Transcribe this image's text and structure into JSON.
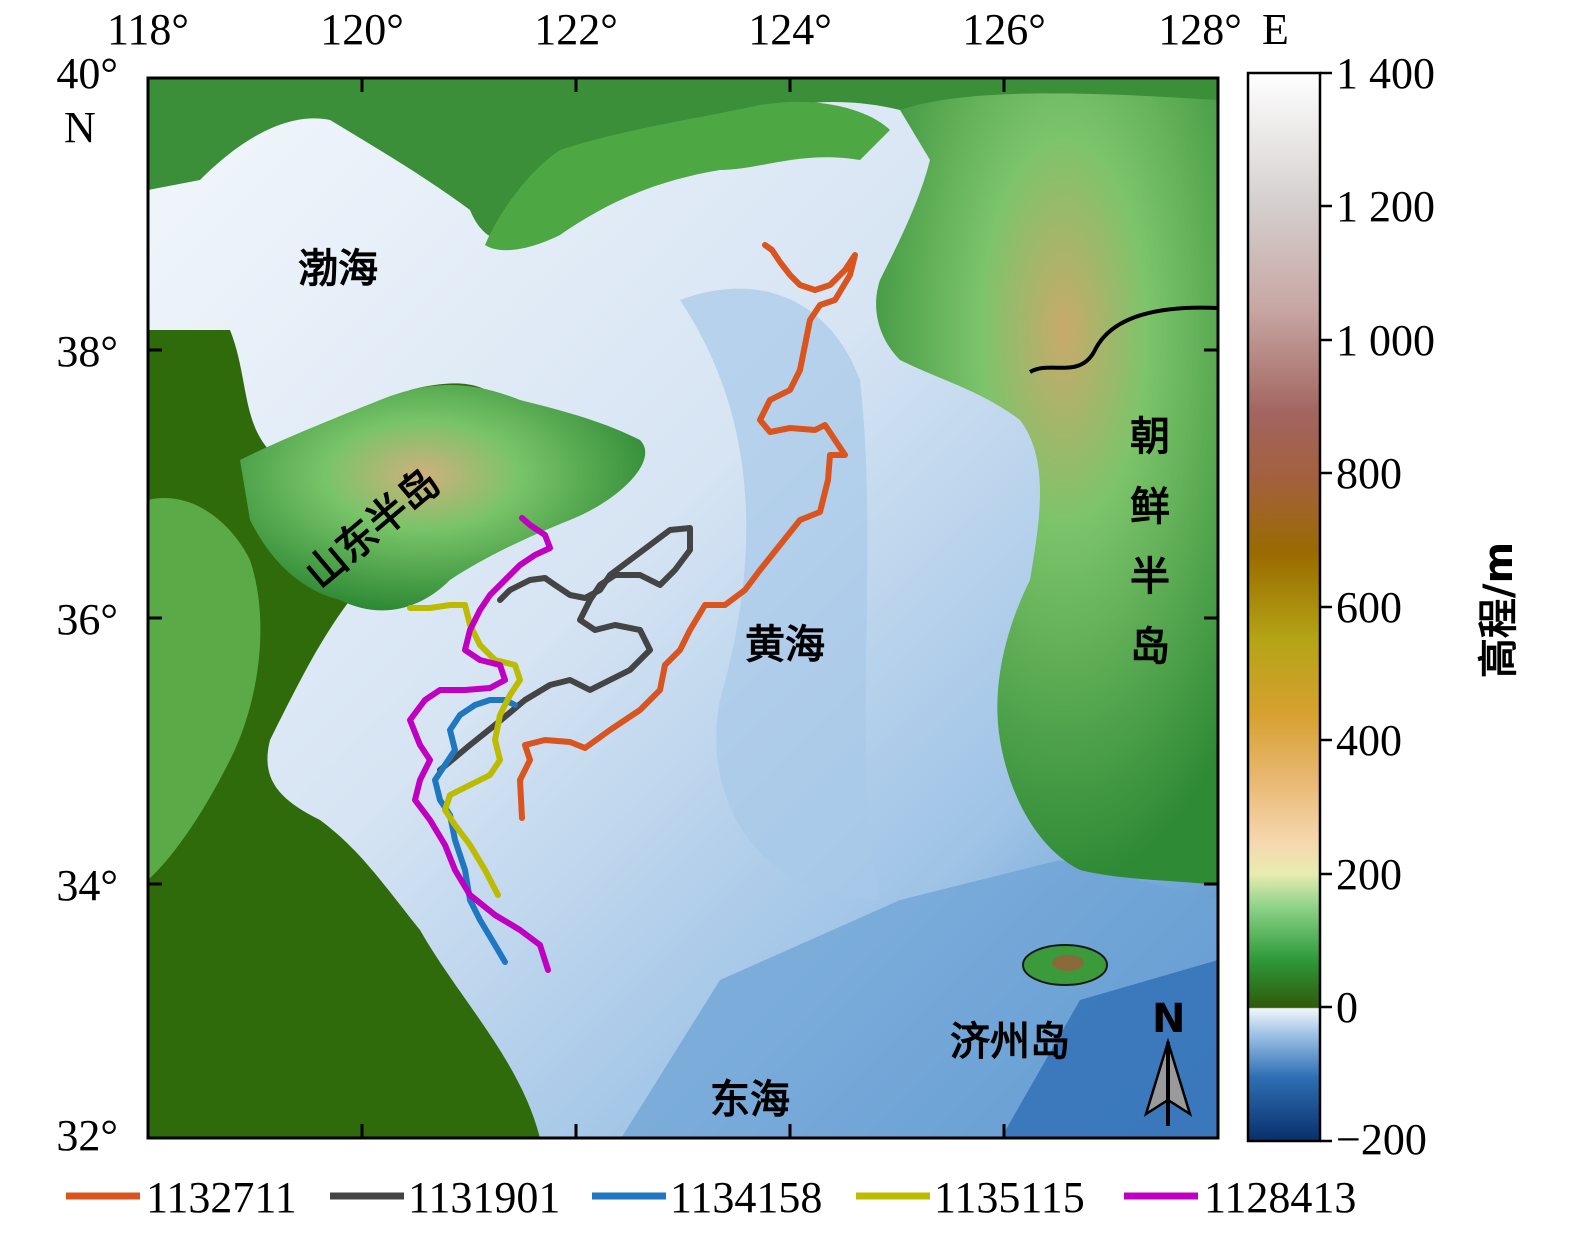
{
  "axes": {
    "x_ticks": [
      "118°",
      "120°",
      "122°",
      "124°",
      "126°",
      "128°"
    ],
    "x_unit": "E",
    "y_ticks": [
      "40°",
      "38°",
      "36°",
      "34°",
      "32°"
    ],
    "y_unit": "N",
    "lon_range": [
      118,
      128
    ],
    "lat_range": [
      32,
      40
    ]
  },
  "colorbar": {
    "title": "高程/m",
    "ticks": [
      "1 400",
      "1 200",
      "1 000",
      "800",
      "600",
      "400",
      "200",
      "0",
      "−200"
    ],
    "range": [
      -200,
      1400
    ]
  },
  "labels": {
    "bohai": "渤海",
    "shandong": "山东半岛",
    "yellow_sea": "黄海",
    "east_sea": "东海",
    "korea_1": "朝",
    "korea_2": "鲜",
    "korea_3": "半",
    "korea_4": "岛",
    "jeju": "济州岛",
    "north_arrow": "N"
  },
  "tracks": [
    {
      "id": "1132711",
      "color": "#d9541e"
    },
    {
      "id": "1131901",
      "color": "#444444"
    },
    {
      "id": "1134158",
      "color": "#1f77c0"
    },
    {
      "id": "1135115",
      "color": "#bdbb00"
    },
    {
      "id": "1128413",
      "color": "#c000c0"
    }
  ],
  "colors": {
    "land_low": "#2f6b0a",
    "sea_shallow": "#eef3fa",
    "sea_deep": "#2f6fb5"
  }
}
